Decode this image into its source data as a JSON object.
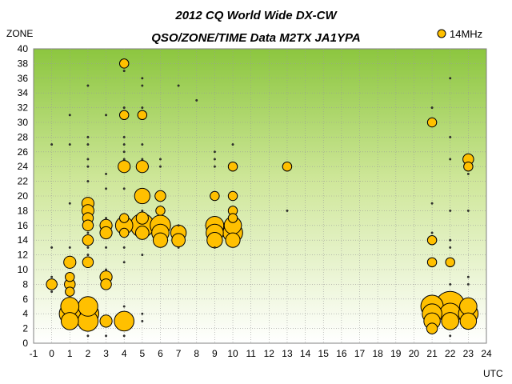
{
  "chart_data": {
    "type": "scatter",
    "title": "2012 CQ World Wide DX-CW",
    "subtitle": "QSO/ZONE/TIME Data M2TX JA1YPA",
    "xlabel": "UTC",
    "ylabel": "ZONE",
    "xlim": [
      -1,
      24
    ],
    "ylim": [
      0,
      40
    ],
    "xticks": [
      "-1",
      "0",
      "1",
      "2",
      "3",
      "4",
      "5",
      "6",
      "7",
      "8",
      "9",
      "10",
      "11",
      "12",
      "13",
      "14",
      "15",
      "16",
      "17",
      "18",
      "19",
      "20",
      "21",
      "22",
      "23",
      "24"
    ],
    "yticks": [
      "0",
      "2",
      "4",
      "6",
      "8",
      "10",
      "12",
      "14",
      "16",
      "18",
      "20",
      "22",
      "24",
      "26",
      "28",
      "30",
      "32",
      "34",
      "36",
      "38",
      "40"
    ],
    "grid": true,
    "legend_position": "top-right",
    "colors": {
      "marker": "#ffc000",
      "marker_edge": "#000000",
      "plot_top": "#8cc63f",
      "plot_bottom": "#ffffff"
    },
    "series": [
      {
        "name": "14MHz",
        "points": [
          {
            "x": 0,
            "y": 27,
            "size": 1
          },
          {
            "x": 0,
            "y": 13,
            "size": 1
          },
          {
            "x": 0,
            "y": 9,
            "size": 1
          },
          {
            "x": 0,
            "y": 8,
            "size": 3
          },
          {
            "x": 0,
            "y": 7,
            "size": 1
          },
          {
            "x": 1,
            "y": 31,
            "size": 1
          },
          {
            "x": 1,
            "y": 27,
            "size": 1
          },
          {
            "x": 1,
            "y": 19,
            "size": 1
          },
          {
            "x": 1,
            "y": 13,
            "size": 1
          },
          {
            "x": 1,
            "y": 11,
            "size": 4
          },
          {
            "x": 1,
            "y": 9,
            "size": 2
          },
          {
            "x": 1,
            "y": 8,
            "size": 3
          },
          {
            "x": 1,
            "y": 7,
            "size": 2
          },
          {
            "x": 1,
            "y": 5,
            "size": 10
          },
          {
            "x": 1,
            "y": 4,
            "size": 14
          },
          {
            "x": 1,
            "y": 3,
            "size": 9
          },
          {
            "x": 2,
            "y": 35,
            "size": 1
          },
          {
            "x": 2,
            "y": 28,
            "size": 1
          },
          {
            "x": 2,
            "y": 27,
            "size": 1
          },
          {
            "x": 2,
            "y": 25,
            "size": 1
          },
          {
            "x": 2,
            "y": 24,
            "size": 1
          },
          {
            "x": 2,
            "y": 22,
            "size": 1
          },
          {
            "x": 2,
            "y": 19,
            "size": 4
          },
          {
            "x": 2,
            "y": 18,
            "size": 4
          },
          {
            "x": 2,
            "y": 17,
            "size": 3
          },
          {
            "x": 2,
            "y": 16,
            "size": 3
          },
          {
            "x": 2,
            "y": 15,
            "size": 1
          },
          {
            "x": 2,
            "y": 14,
            "size": 3
          },
          {
            "x": 2,
            "y": 13,
            "size": 1
          },
          {
            "x": 2,
            "y": 12,
            "size": 1
          },
          {
            "x": 2,
            "y": 11,
            "size": 3
          },
          {
            "x": 2,
            "y": 5,
            "size": 12
          },
          {
            "x": 2,
            "y": 4,
            "size": 15
          },
          {
            "x": 2,
            "y": 3,
            "size": 13
          },
          {
            "x": 2,
            "y": 1,
            "size": 1
          },
          {
            "x": 3,
            "y": 31,
            "size": 1
          },
          {
            "x": 3,
            "y": 23,
            "size": 1
          },
          {
            "x": 3,
            "y": 21,
            "size": 1
          },
          {
            "x": 3,
            "y": 17,
            "size": 1
          },
          {
            "x": 3,
            "y": 16,
            "size": 4
          },
          {
            "x": 3,
            "y": 15,
            "size": 4
          },
          {
            "x": 3,
            "y": 13,
            "size": 1
          },
          {
            "x": 3,
            "y": 10,
            "size": 1
          },
          {
            "x": 3,
            "y": 9,
            "size": 4
          },
          {
            "x": 3,
            "y": 8,
            "size": 3
          },
          {
            "x": 3,
            "y": 3,
            "size": 4
          },
          {
            "x": 3,
            "y": 1,
            "size": 1
          },
          {
            "x": 4,
            "y": 38,
            "size": 2
          },
          {
            "x": 4,
            "y": 37,
            "size": 1
          },
          {
            "x": 4,
            "y": 32,
            "size": 1
          },
          {
            "x": 4,
            "y": 31,
            "size": 2
          },
          {
            "x": 4,
            "y": 28,
            "size": 1
          },
          {
            "x": 4,
            "y": 27,
            "size": 1
          },
          {
            "x": 4,
            "y": 26,
            "size": 1
          },
          {
            "x": 4,
            "y": 25,
            "size": 1
          },
          {
            "x": 4,
            "y": 24,
            "size": 4
          },
          {
            "x": 4,
            "y": 21,
            "size": 1
          },
          {
            "x": 4,
            "y": 17,
            "size": 2
          },
          {
            "x": 4,
            "y": 16,
            "size": 9
          },
          {
            "x": 4,
            "y": 15,
            "size": 2
          },
          {
            "x": 4,
            "y": 13,
            "size": 1
          },
          {
            "x": 4,
            "y": 11,
            "size": 1
          },
          {
            "x": 4,
            "y": 5,
            "size": 1
          },
          {
            "x": 4,
            "y": 3,
            "size": 12
          },
          {
            "x": 4,
            "y": 1,
            "size": 1
          },
          {
            "x": 5,
            "y": 36,
            "size": 1
          },
          {
            "x": 5,
            "y": 35,
            "size": 1
          },
          {
            "x": 5,
            "y": 32,
            "size": 1
          },
          {
            "x": 5,
            "y": 31,
            "size": 2
          },
          {
            "x": 5,
            "y": 27,
            "size": 1
          },
          {
            "x": 5,
            "y": 25,
            "size": 1
          },
          {
            "x": 5,
            "y": 24,
            "size": 4
          },
          {
            "x": 5,
            "y": 20,
            "size": 7
          },
          {
            "x": 5,
            "y": 18,
            "size": 1
          },
          {
            "x": 5,
            "y": 17,
            "size": 4
          },
          {
            "x": 5,
            "y": 16,
            "size": 18
          },
          {
            "x": 5,
            "y": 15,
            "size": 5
          },
          {
            "x": 5,
            "y": 12,
            "size": 1
          },
          {
            "x": 5,
            "y": 4,
            "size": 1
          },
          {
            "x": 5,
            "y": 3,
            "size": 1
          },
          {
            "x": 6,
            "y": 25,
            "size": 1
          },
          {
            "x": 6,
            "y": 24,
            "size": 1
          },
          {
            "x": 6,
            "y": 20,
            "size": 3
          },
          {
            "x": 6,
            "y": 18,
            "size": 2
          },
          {
            "x": 6,
            "y": 16,
            "size": 13
          },
          {
            "x": 6,
            "y": 15,
            "size": 9
          },
          {
            "x": 6,
            "y": 14,
            "size": 6
          },
          {
            "x": 7,
            "y": 35,
            "size": 1
          },
          {
            "x": 7,
            "y": 16,
            "size": 1
          },
          {
            "x": 7,
            "y": 15,
            "size": 7
          },
          {
            "x": 7,
            "y": 14,
            "size": 5
          },
          {
            "x": 7,
            "y": 13,
            "size": 1
          },
          {
            "x": 8,
            "y": 33,
            "size": 1
          },
          {
            "x": 9,
            "y": 26,
            "size": 1
          },
          {
            "x": 9,
            "y": 25,
            "size": 1
          },
          {
            "x": 9,
            "y": 24,
            "size": 1
          },
          {
            "x": 9,
            "y": 20,
            "size": 2
          },
          {
            "x": 9,
            "y": 16,
            "size": 10
          },
          {
            "x": 9,
            "y": 15,
            "size": 9
          },
          {
            "x": 9,
            "y": 14,
            "size": 7
          },
          {
            "x": 9,
            "y": 13,
            "size": 1
          },
          {
            "x": 10,
            "y": 27,
            "size": 1
          },
          {
            "x": 10,
            "y": 24,
            "size": 2
          },
          {
            "x": 10,
            "y": 20,
            "size": 2
          },
          {
            "x": 10,
            "y": 18,
            "size": 2
          },
          {
            "x": 10,
            "y": 17,
            "size": 2
          },
          {
            "x": 10,
            "y": 16,
            "size": 9
          },
          {
            "x": 10,
            "y": 15,
            "size": 12
          },
          {
            "x": 10,
            "y": 14,
            "size": 6
          },
          {
            "x": 13,
            "y": 24,
            "size": 2
          },
          {
            "x": 13,
            "y": 18,
            "size": 1
          },
          {
            "x": 21,
            "y": 32,
            "size": 1
          },
          {
            "x": 21,
            "y": 30,
            "size": 2
          },
          {
            "x": 21,
            "y": 19,
            "size": 1
          },
          {
            "x": 21,
            "y": 15,
            "size": 1
          },
          {
            "x": 21,
            "y": 14,
            "size": 2
          },
          {
            "x": 21,
            "y": 11,
            "size": 2
          },
          {
            "x": 21,
            "y": 5,
            "size": 16
          },
          {
            "x": 21,
            "y": 4,
            "size": 12
          },
          {
            "x": 21,
            "y": 3,
            "size": 8
          },
          {
            "x": 21,
            "y": 2,
            "size": 3
          },
          {
            "x": 22,
            "y": 36,
            "size": 1
          },
          {
            "x": 22,
            "y": 28,
            "size": 1
          },
          {
            "x": 22,
            "y": 25,
            "size": 1
          },
          {
            "x": 22,
            "y": 18,
            "size": 1
          },
          {
            "x": 22,
            "y": 14,
            "size": 1
          },
          {
            "x": 22,
            "y": 13,
            "size": 1
          },
          {
            "x": 22,
            "y": 11,
            "size": 2
          },
          {
            "x": 22,
            "y": 8,
            "size": 1
          },
          {
            "x": 22,
            "y": 5,
            "size": 30
          },
          {
            "x": 22,
            "y": 4,
            "size": 14
          },
          {
            "x": 22,
            "y": 3,
            "size": 9
          },
          {
            "x": 22,
            "y": 1,
            "size": 1
          },
          {
            "x": 23,
            "y": 25,
            "size": 3
          },
          {
            "x": 23,
            "y": 24,
            "size": 2
          },
          {
            "x": 23,
            "y": 23,
            "size": 1
          },
          {
            "x": 23,
            "y": 18,
            "size": 1
          },
          {
            "x": 23,
            "y": 9,
            "size": 1
          },
          {
            "x": 23,
            "y": 8,
            "size": 1
          },
          {
            "x": 23,
            "y": 5,
            "size": 9
          },
          {
            "x": 23,
            "y": 4,
            "size": 12
          },
          {
            "x": 23,
            "y": 3,
            "size": 8
          }
        ]
      }
    ]
  }
}
